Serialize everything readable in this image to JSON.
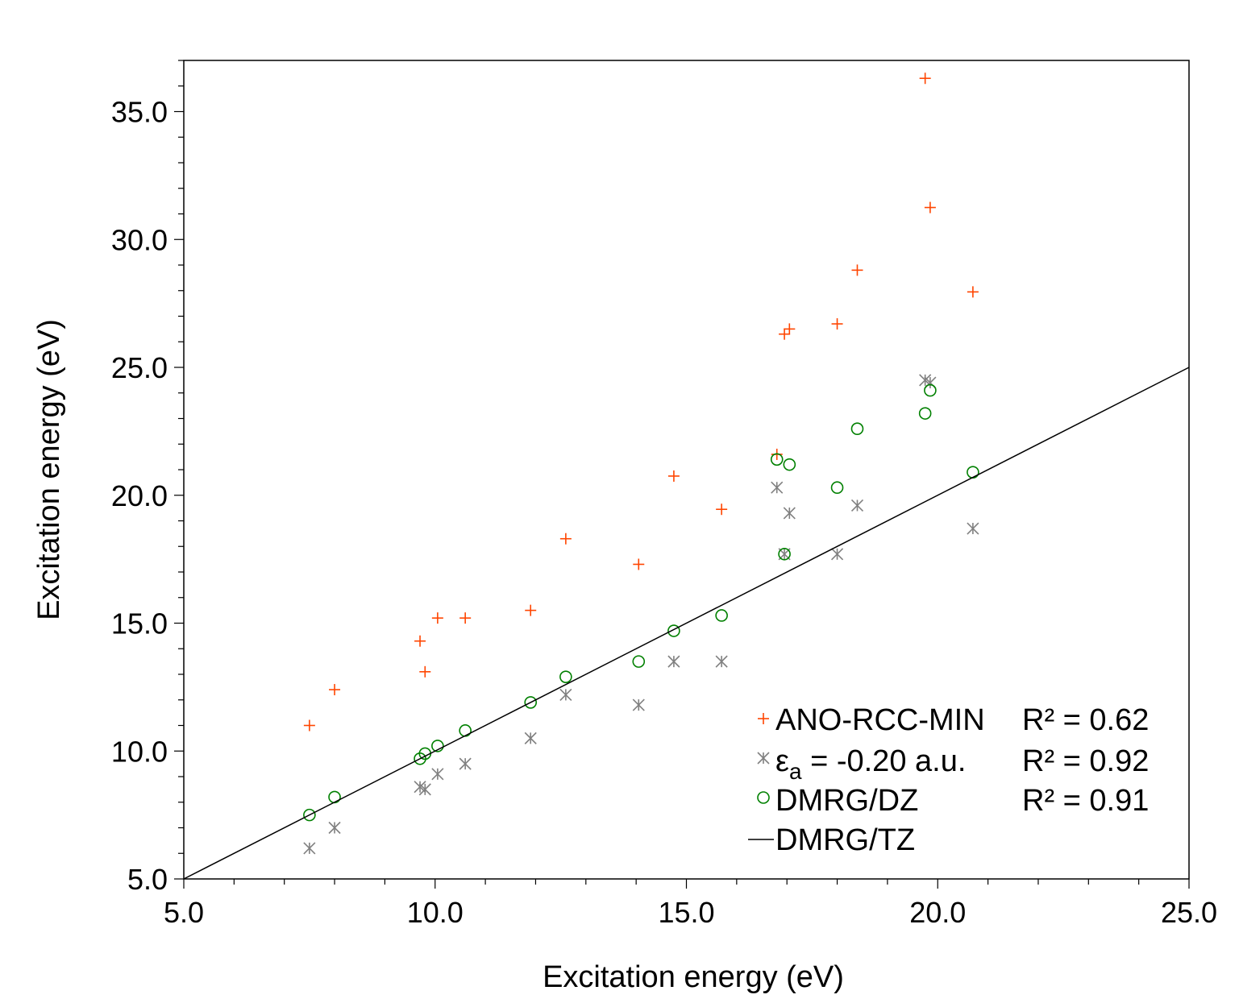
{
  "chart_data": {
    "type": "scatter",
    "title": "",
    "xlabel": "Excitation energy (eV)",
    "ylabel": "Excitation energy (eV)",
    "xlim": [
      5.0,
      25.0
    ],
    "ylim": [
      5.0,
      37.0
    ],
    "x_major_ticks": [
      5.0,
      10.0,
      15.0,
      20.0,
      25.0
    ],
    "x_tick_labels": [
      "5.0",
      "10.0",
      "15.0",
      "20.0",
      "25.0"
    ],
    "x_minor_step": 1.0,
    "y_major_ticks": [
      5.0,
      10.0,
      15.0,
      20.0,
      25.0,
      30.0,
      35.0
    ],
    "y_tick_labels": [
      "5.0",
      "10.0",
      "15.0",
      "20.0",
      "25.0",
      "30.0",
      "35.0"
    ],
    "y_minor_step": 1.0,
    "grid": false,
    "legend_position": "bottom-right",
    "series": [
      {
        "name": "ANO-RCC-MIN",
        "marker": "plus",
        "color": "#ff4500",
        "r2_label": "R² = 0.62",
        "x": [
          7.5,
          8.0,
          9.7,
          9.8,
          10.05,
          10.6,
          11.9,
          12.6,
          14.05,
          14.75,
          15.7,
          16.8,
          16.95,
          17.05,
          18.0,
          18.4,
          19.75,
          19.85,
          20.7
        ],
        "y": [
          11.0,
          12.4,
          14.3,
          13.1,
          15.2,
          15.2,
          15.5,
          18.3,
          17.3,
          20.75,
          19.45,
          21.6,
          26.3,
          26.5,
          26.7,
          28.8,
          36.3,
          31.25,
          27.95
        ]
      },
      {
        "name": "εa = -0.20 a.u.",
        "label_main": "ε",
        "label_sub": "a",
        "label_rest": " = -0.20 a.u.",
        "marker": "asterisk",
        "color": "#808080",
        "r2_label": "R² = 0.92",
        "x": [
          7.5,
          8.0,
          9.7,
          9.8,
          10.05,
          10.6,
          11.9,
          12.6,
          14.05,
          14.75,
          15.7,
          16.8,
          16.95,
          17.05,
          18.0,
          18.4,
          19.75,
          19.85,
          20.7
        ],
        "y": [
          6.2,
          7.0,
          8.6,
          8.5,
          9.1,
          9.5,
          10.5,
          12.2,
          11.8,
          13.5,
          13.5,
          20.3,
          17.7,
          19.3,
          17.7,
          19.6,
          24.5,
          24.4,
          18.7
        ]
      },
      {
        "name": "DMRG/DZ",
        "marker": "circle",
        "color": "#008000",
        "r2_label": "R² = 0.91",
        "x": [
          7.5,
          8.0,
          9.7,
          9.8,
          10.05,
          10.6,
          11.9,
          12.6,
          14.05,
          14.75,
          15.7,
          16.8,
          16.95,
          17.05,
          18.0,
          18.4,
          19.75,
          19.85,
          20.7
        ],
        "y": [
          7.5,
          8.2,
          9.7,
          9.9,
          10.2,
          10.8,
          11.9,
          12.9,
          13.5,
          14.7,
          15.3,
          21.4,
          17.7,
          21.2,
          20.3,
          22.6,
          23.2,
          24.1,
          20.9
        ]
      },
      {
        "name": "DMRG/TZ",
        "marker": "line",
        "color": "#000000",
        "x": [
          5.0,
          25.0
        ],
        "y": [
          5.0,
          25.0
        ]
      }
    ]
  }
}
